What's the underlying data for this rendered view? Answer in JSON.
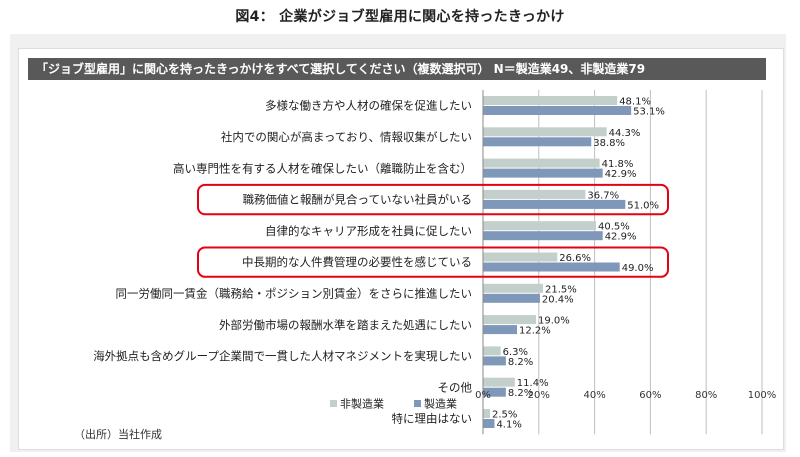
{
  "page_title": "図4： 企業がジョブ型雇用に関心を持ったきっかけ",
  "source_note": "（出所）当社作成",
  "colors": {
    "non_manufacturing": "#c3cfcb",
    "manufacturing": "#7f97b8",
    "highlight": "#e60012",
    "header_bg": "#595959",
    "grid": "#bfbfbf"
  },
  "chart_data": {
    "type": "bar",
    "orientation": "horizontal",
    "title": "「ジョブ型雇用」に関心を持ったきっかけをすべて選択してください（複数選択可） N＝製造業49、非製造業79",
    "categories": [
      "多様な働き方や人材の確保を促進したい",
      "社内での関心が高まっており、情報収集がしたい",
      "高い専門性を有する人材を確保したい（離職防止を含む）",
      "職務価値と報酬が見合っていない社員がいる",
      "自律的なキャリア形成を社員に促したい",
      "中長期的な人件費管理の必要性を感じている",
      "同一労働同一賃金（職務給・ポジション別賃金）をさらに推進したい",
      "外部労働市場の報酬水準を踏まえた処遇にしたい",
      "海外拠点も含めグループ企業間で一貫した人材マネジメントを実現したい",
      "その他",
      "特に理由はない"
    ],
    "series": [
      {
        "name": "非製造業",
        "values": [
          48.1,
          44.3,
          41.8,
          36.7,
          40.5,
          26.6,
          21.5,
          19.0,
          6.3,
          11.4,
          2.5
        ],
        "labels": [
          "48.1%",
          "44.3%",
          "41.8%",
          "36.7%",
          "40.5%",
          "26.6%",
          "21.5%",
          "19.0%",
          "6.3%",
          "11.4%",
          "2.5%"
        ]
      },
      {
        "name": "製造業",
        "values": [
          53.1,
          38.8,
          42.9,
          51.0,
          42.9,
          49.0,
          20.4,
          12.2,
          8.2,
          8.2,
          4.1
        ],
        "labels": [
          "53.1%",
          "38.8%",
          "42.9%",
          "51.0%",
          "42.9%",
          "49.0%",
          "20.4%",
          "12.2%",
          "8.2%",
          "8.2%",
          "4.1%"
        ]
      }
    ],
    "xlim": [
      0,
      100
    ],
    "xticks": [
      "0%",
      "20%",
      "40%",
      "60%",
      "80%",
      "100%"
    ],
    "xtick_values": [
      0,
      20,
      40,
      60,
      80,
      100
    ],
    "highlighted_categories": [
      3,
      5
    ],
    "legend": [
      "非製造業",
      "製造業"
    ],
    "legend_position": "bottom-left",
    "grid": true
  }
}
